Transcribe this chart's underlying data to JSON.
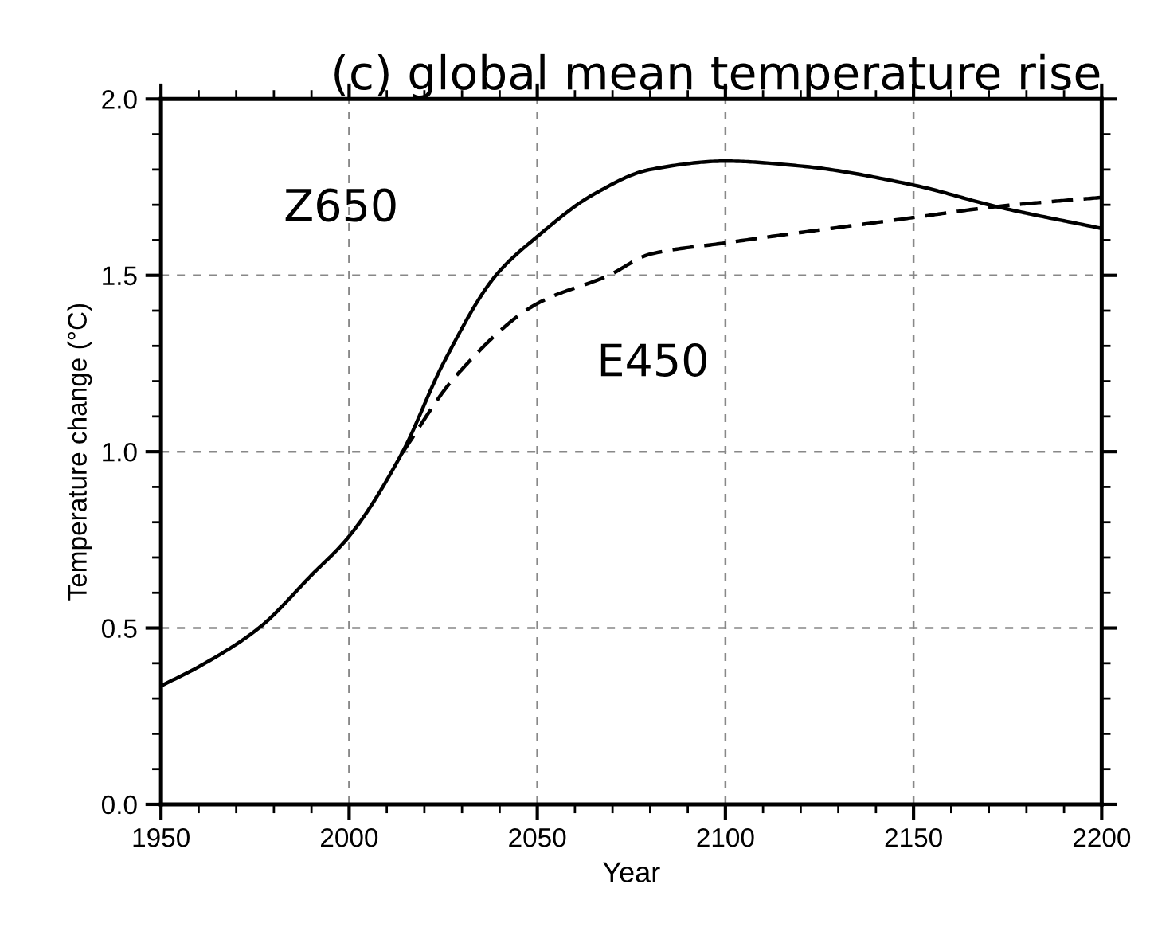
{
  "chart_data": {
    "type": "line",
    "title": "(c) global mean temperature rise",
    "xlabel": "Year",
    "ylabel": "Temperature change (°C)",
    "series": [
      {
        "name": "Z650",
        "color": "#000000",
        "line_style": "solid",
        "x": [
          1950,
          1960,
          1976,
          1990,
          2000,
          2014,
          2025,
          2039,
          2050,
          2065,
          2080,
          2100,
          2120,
          2150,
          2172,
          2200
        ],
        "values": [
          0.336,
          0.39,
          0.5,
          0.65,
          0.76,
          0.995,
          1.25,
          1.5,
          1.61,
          1.73,
          1.8,
          1.824,
          1.81,
          1.756,
          1.695,
          1.633
        ]
      },
      {
        "name": "E450",
        "color": "#000000",
        "line_style": "dashed",
        "x": [
          2014,
          2028,
          2050,
          2069,
          2080,
          2100,
          2150,
          2172,
          2200
        ],
        "values": [
          0.995,
          1.21,
          1.42,
          1.5,
          1.56,
          1.592,
          1.664,
          1.695,
          1.721
        ]
      }
    ],
    "xlim": [
      1950,
      2200
    ],
    "xticks": [
      1950,
      2000,
      2050,
      2100,
      2150,
      2200
    ],
    "ylim": [
      0,
      2
    ],
    "yticks": [
      {
        "value": 0,
        "label": "0.0"
      },
      {
        "value": 0.5,
        "label": "0.5"
      },
      {
        "value": 1,
        "label": "1.0"
      },
      {
        "value": 1.5,
        "label": "1.5"
      },
      {
        "value": 2,
        "label": "2.0"
      }
    ],
    "grid": true,
    "legend": false,
    "marker": "none"
  }
}
